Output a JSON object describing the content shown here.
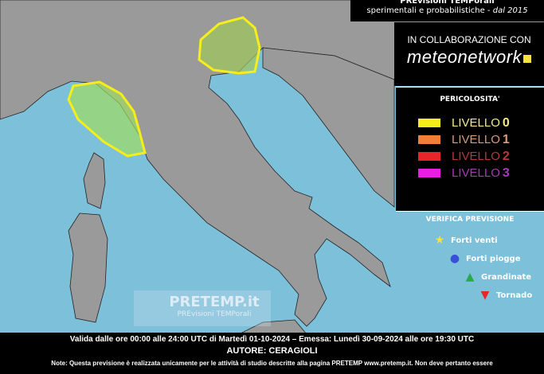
{
  "header": {
    "title": "PREvisioni TEMPorali",
    "subtitle": "sperimentali e probabilistiche - ",
    "since": "dal 2015"
  },
  "collab": {
    "label": "IN COLLABORAZIONE CON",
    "brand": "meteonetwork"
  },
  "legend": {
    "title": "PERICOLOSITA'",
    "levels": [
      {
        "label": "LIVELLO",
        "num": "0",
        "color": "#f5ee1a",
        "text_color": "#f3e98a"
      },
      {
        "label": "LIVELLO",
        "num": "1",
        "color": "#f07f3a",
        "text_color": "#d89a78"
      },
      {
        "label": "LIVELLO",
        "num": "2",
        "color": "#e8262a",
        "text_color": "#b8383a"
      },
      {
        "label": "LIVELLO",
        "num": "3",
        "color": "#e61ee6",
        "text_color": "#a83ab8"
      }
    ]
  },
  "verification": {
    "title": "VERIFICA PREVISIONE",
    "items": [
      {
        "label": "Forti venti",
        "icon": "star-icon",
        "color": "#f5e23a"
      },
      {
        "label": "Forti piogge",
        "icon": "circle-icon",
        "color": "#3a4fd8"
      },
      {
        "label": "Grandinate",
        "icon": "triangle-up-icon",
        "color": "#2aa84a"
      },
      {
        "label": "Tornado",
        "icon": "triangle-down-icon",
        "color": "#e8262a"
      }
    ]
  },
  "map": {
    "sea_color": "#7cc0da",
    "land_color": "#9a9a9a",
    "risk_areas": [
      {
        "region": "Liguria-Tuscany",
        "level": "0"
      },
      {
        "region": "Veneto-Friuli",
        "level": "0"
      }
    ]
  },
  "watermark": {
    "brand": "PRETEMP.it",
    "tagline": "PREvisioni TEMPorali"
  },
  "footer": {
    "validity": "Valida dalle ore 00:00 alle 24:00 UTC di Martedì 01-10-2024 – Emessa: Lunedì 30-09-2024 alle ore 19:30 UTC",
    "author": "AUTORE: CERAGIOLI",
    "note_prefix": "Note: Questa previsione è realizzata unicamente per le attività di studio descritte alla pagina PRETEMP ",
    "note_link": "www.pretemp.it",
    "note_suffix": ". Non deve pertanto essere"
  }
}
